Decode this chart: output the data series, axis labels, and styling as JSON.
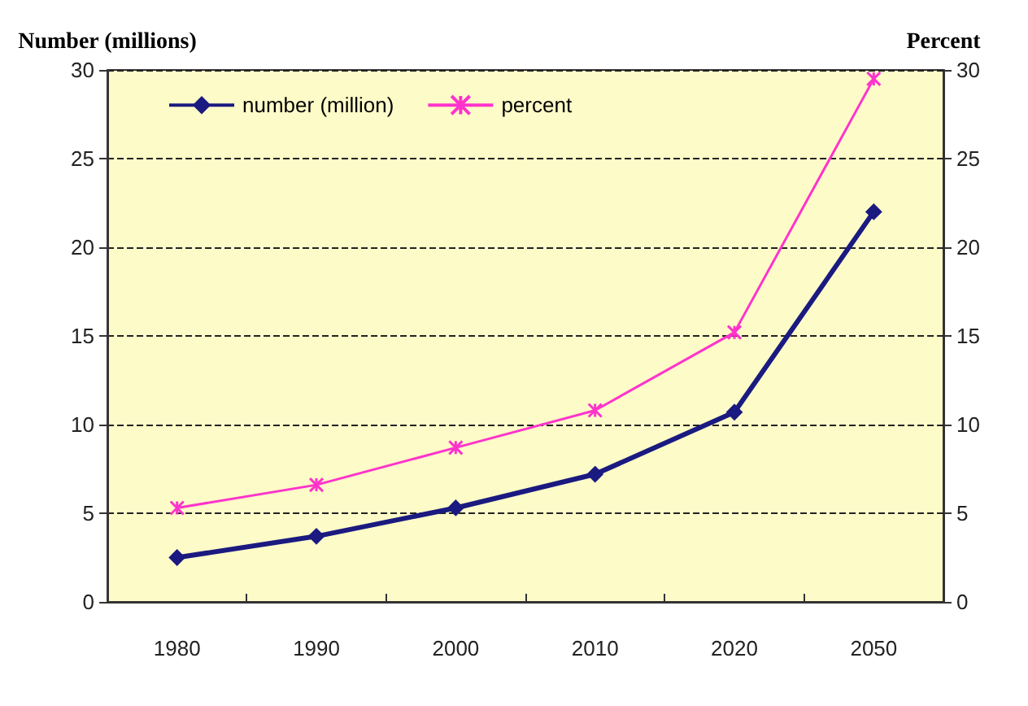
{
  "chart_data": {
    "type": "line",
    "ylabel": "Number (millions)",
    "y2label": "Percent",
    "categories": [
      "1980",
      "1990",
      "2000",
      "2010",
      "2020",
      "2050"
    ],
    "series": [
      {
        "name": "number (million)",
        "color": "#1a1a80",
        "marker": "diamond",
        "values": [
          2.5,
          3.7,
          5.3,
          7.2,
          10.7,
          22
        ]
      },
      {
        "name": "percent",
        "color": "#ff33cc",
        "marker": "cross",
        "axis": "y2",
        "values": [
          5.3,
          6.6,
          8.7,
          10.8,
          15.2,
          29.5
        ]
      }
    ],
    "ylim": [
      0,
      30
    ],
    "yticks": [
      0,
      5,
      10,
      15,
      20,
      25,
      30
    ],
    "y2lim": [
      0,
      30
    ],
    "y2ticks": [
      0,
      5,
      10,
      15,
      20,
      25,
      30
    ],
    "grid": "y",
    "legend": "top left"
  }
}
